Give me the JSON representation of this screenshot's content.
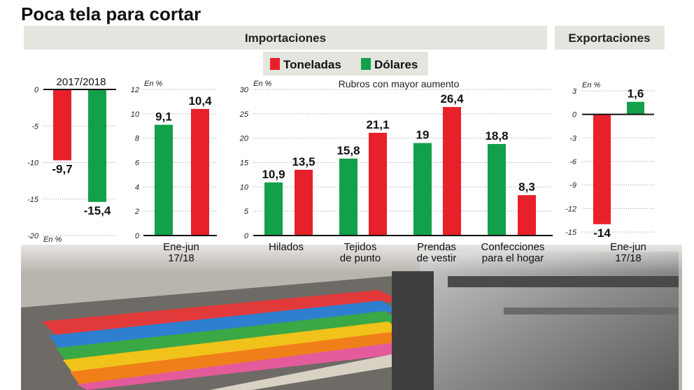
{
  "title": "Poca tela para cortar",
  "sections": {
    "importaciones": "Importaciones",
    "exportaciones": "Exportaciones"
  },
  "legend": [
    {
      "name": "Toneladas",
      "color": "#e8202a"
    },
    {
      "name": "Dólares",
      "color": "#12a04a"
    }
  ],
  "chart_data": [
    {
      "type": "bar",
      "section": "Importaciones",
      "categories": [
        "2017/2018"
      ],
      "series": [
        {
          "name": "Toneladas",
          "values": [
            -9.7
          ],
          "labels": [
            "-9,7"
          ]
        },
        {
          "name": "Dólares",
          "values": [
            -15.4
          ],
          "labels": [
            "-15,4"
          ]
        }
      ],
      "ylim": [
        -20,
        0
      ],
      "yticks": [
        0,
        -5,
        -10,
        -15,
        -20
      ],
      "ytick_labels": [
        "0",
        "-5",
        "-10",
        "-15",
        "-20"
      ],
      "ylabel": "En %",
      "header": "2017/2018",
      "grid": true
    },
    {
      "type": "bar",
      "section": "Importaciones",
      "categories": [
        "Ene-jun 17/18"
      ],
      "category_lines": [
        [
          "Ene-jun",
          "17/18"
        ]
      ],
      "series": [
        {
          "name": "Dólares",
          "values": [
            9.1
          ],
          "labels": [
            "9,1"
          ]
        },
        {
          "name": "Toneladas",
          "values": [
            10.4
          ],
          "labels": [
            "10,4"
          ]
        }
      ],
      "ylim": [
        0,
        12
      ],
      "yticks": [
        0,
        2,
        4,
        6,
        8,
        10,
        12
      ],
      "ytick_labels": [
        "0",
        "2",
        "4",
        "6",
        "8",
        "10",
        "12"
      ],
      "ylabel": "En %",
      "grid": true
    },
    {
      "type": "bar",
      "section": "Importaciones",
      "subtitle": "Rubros con mayor aumento",
      "categories": [
        "Hilados",
        "Tejidos de punto",
        "Prendas de vestir",
        "Confecciones para el hogar"
      ],
      "category_lines": [
        [
          "Hilados"
        ],
        [
          "Tejidos",
          "de punto"
        ],
        [
          "Prendas",
          "de vestir"
        ],
        [
          "Confecciones",
          "para el hogar"
        ]
      ],
      "series": [
        {
          "name": "Dólares",
          "values": [
            10.9,
            15.8,
            19,
            18.8
          ],
          "labels": [
            "10,9",
            "15,8",
            "19",
            "18,8"
          ]
        },
        {
          "name": "Toneladas",
          "values": [
            13.5,
            21.1,
            26.4,
            8.3
          ],
          "labels": [
            "13,5",
            "21,1",
            "26,4",
            "8,3"
          ]
        }
      ],
      "ylim": [
        0,
        30
      ],
      "yticks": [
        0,
        5,
        10,
        15,
        20,
        25,
        30
      ],
      "ytick_labels": [
        "0",
        "5",
        "10",
        "15",
        "20",
        "25",
        "30"
      ],
      "ylabel": "En %",
      "grid": true
    },
    {
      "type": "bar",
      "section": "Exportaciones",
      "categories": [
        "Ene-jun 17/18"
      ],
      "category_lines": [
        [
          "Ene-jun",
          "17/18"
        ]
      ],
      "series": [
        {
          "name": "Toneladas",
          "values": [
            -14
          ],
          "labels": [
            "-14"
          ]
        },
        {
          "name": "Dólares",
          "values": [
            1.6
          ],
          "labels": [
            "1,6"
          ]
        }
      ],
      "ylim": [
        -15,
        3
      ],
      "yticks": [
        3,
        0,
        -3,
        -6,
        -9,
        -12,
        -15
      ],
      "ytick_labels": [
        "3",
        "0",
        "-3",
        "-6",
        "-9",
        "-12",
        "-15"
      ],
      "ylabel": "En %",
      "grid": true
    }
  ]
}
